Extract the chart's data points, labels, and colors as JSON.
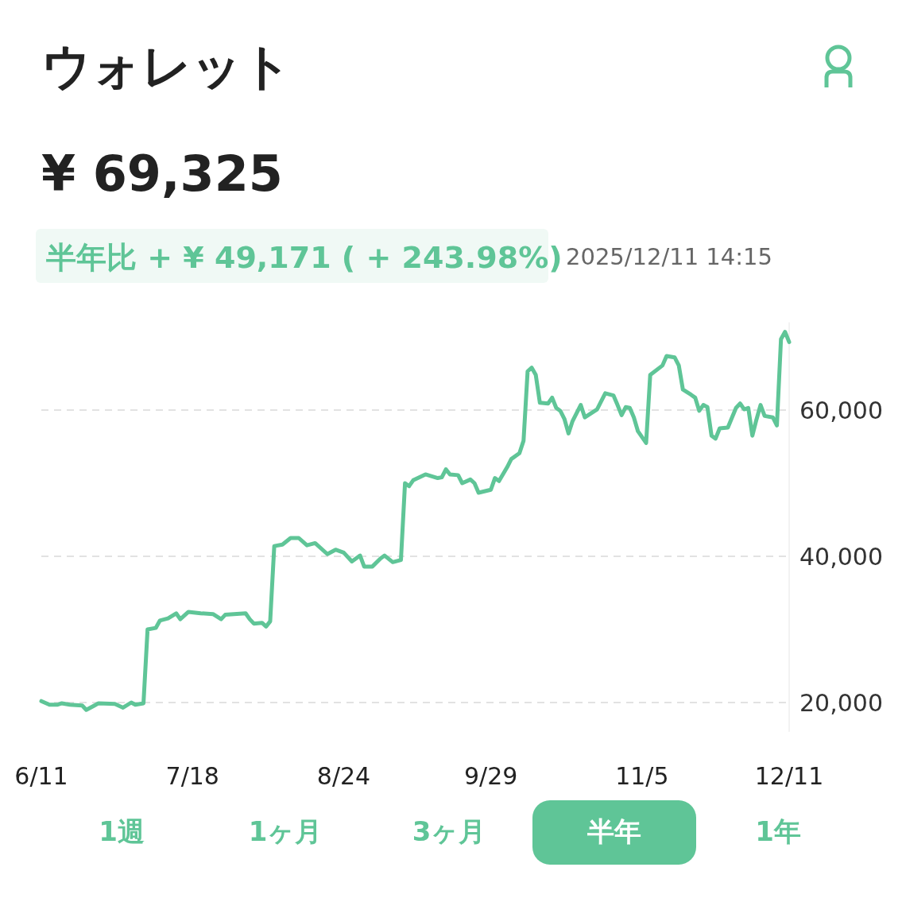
{
  "chart_data": {
    "type": "line",
    "title": "ウォレット",
    "subtitle": "¥ 69,325",
    "annotations": [
      "半年比 + ¥ 49,171 ( + 243.98%)",
      "2025/12/11 14:15",
      "1週",
      "1ヶ月",
      "3ヶ月",
      "半年",
      "1年"
    ],
    "x": [
      "2025-06-11",
      "2025-06-13",
      "2025-06-15",
      "2025-06-16",
      "2025-06-18",
      "2025-06-21",
      "2025-06-22",
      "2025-06-24",
      "2025-06-25",
      "2025-06-29",
      "2025-07-01",
      "2025-07-03",
      "2025-07-04",
      "2025-07-06",
      "2025-07-07",
      "2025-07-09",
      "2025-07-10",
      "2025-07-12",
      "2025-07-14",
      "2025-07-15",
      "2025-07-17",
      "2025-07-20",
      "2025-07-23",
      "2025-07-25",
      "2025-07-26",
      "2025-07-31",
      "2025-08-01",
      "2025-08-02",
      "2025-08-04",
      "2025-08-05",
      "2025-08-06",
      "2025-08-07",
      "2025-08-09",
      "2025-08-11",
      "2025-08-13",
      "2025-08-15",
      "2025-08-17",
      "2025-08-20",
      "2025-08-22",
      "2025-08-24",
      "2025-08-26",
      "2025-08-28",
      "2025-08-29",
      "2025-08-31",
      "2025-09-02",
      "2025-09-03",
      "2025-09-05",
      "2025-09-07",
      "2025-09-08",
      "2025-09-09",
      "2025-09-10",
      "2025-09-13",
      "2025-09-16",
      "2025-09-17",
      "2025-09-18",
      "2025-09-19",
      "2025-09-21",
      "2025-09-22",
      "2025-09-24",
      "2025-09-25",
      "2025-09-26",
      "2025-09-29",
      "2025-09-30",
      "2025-10-01",
      "2025-10-03",
      "2025-10-04",
      "2025-10-06",
      "2025-10-07",
      "2025-10-08",
      "2025-10-09",
      "2025-10-10",
      "2025-10-11",
      "2025-10-13",
      "2025-10-14",
      "2025-10-15",
      "2025-10-16",
      "2025-10-17",
      "2025-10-18",
      "2025-10-19",
      "2025-10-21",
      "2025-10-22",
      "2025-10-25",
      "2025-10-27",
      "2025-10-29",
      "2025-10-30",
      "2025-10-31",
      "2025-11-01",
      "2025-11-02",
      "2025-11-03",
      "2025-11-04",
      "2025-11-06",
      "2025-11-07",
      "2025-11-10",
      "2025-11-11",
      "2025-11-13",
      "2025-11-14",
      "2025-11-15",
      "2025-11-17",
      "2025-11-18",
      "2025-11-19",
      "2025-11-20",
      "2025-11-21",
      "2025-11-22",
      "2025-11-23",
      "2025-11-24",
      "2025-11-26",
      "2025-11-28",
      "2025-11-29",
      "2025-11-30",
      "2025-12-01",
      "2025-12-02",
      "2025-12-03",
      "2025-12-04",
      "2025-12-05",
      "2025-12-07",
      "2025-12-08",
      "2025-12-09",
      "2025-12-10",
      "2025-12-11"
    ],
    "series": [
      {
        "color": "#5fc597",
        "values": [
          20200,
          19700,
          19700,
          19900,
          19700,
          19600,
          19000,
          19600,
          19900,
          19800,
          19300,
          20000,
          19700,
          19900,
          30000,
          30200,
          31200,
          31500,
          32200,
          31400,
          32400,
          32200,
          32100,
          31400,
          32000,
          32200,
          31400,
          30800,
          30900,
          30400,
          31100,
          41400,
          41600,
          42500,
          42500,
          41500,
          41800,
          40300,
          40900,
          40500,
          39300,
          40100,
          38600,
          38600,
          39700,
          40100,
          39200,
          39500,
          50000,
          49600,
          50400,
          51200,
          50700,
          50800,
          51900,
          51200,
          51100,
          50000,
          50500,
          50000,
          48700,
          49100,
          50700,
          50300,
          52200,
          53300,
          54100,
          55800,
          65300,
          65800,
          64800,
          61000,
          60900,
          61700,
          60300,
          59900,
          58800,
          56800,
          58500,
          60700,
          59000,
          60100,
          62300,
          62000,
          60700,
          59300,
          60400,
          60300,
          59000,
          57100,
          55500,
          64800,
          66100,
          67400,
          67200,
          66100,
          62800,
          62100,
          61700,
          59900,
          60700,
          60400,
          56500,
          56100,
          57500,
          57600,
          60300,
          60900,
          60100,
          60300,
          56500,
          58700,
          60700,
          59200,
          59000,
          57900,
          69700,
          70700,
          69300
        ]
      }
    ],
    "xlim": [
      "2025-06-11",
      "2025-12-11"
    ],
    "xticks": [
      {
        "value": "2025-06-11",
        "label": "6/11"
      },
      {
        "value": "2025-07-18",
        "label": "7/18"
      },
      {
        "value": "2025-08-24",
        "label": "8/24"
      },
      {
        "value": "2025-09-29",
        "label": "9/29"
      },
      {
        "value": "2025-11-05",
        "label": "11/5"
      },
      {
        "value": "2025-12-11",
        "label": "12/11"
      }
    ],
    "ylim": [
      16000,
      72000
    ],
    "yticks": [
      {
        "value": 20000,
        "label": "20,000"
      },
      {
        "value": 40000,
        "label": "40,000"
      },
      {
        "value": 60000,
        "label": "60,000"
      }
    ],
    "grid": "y"
  }
}
